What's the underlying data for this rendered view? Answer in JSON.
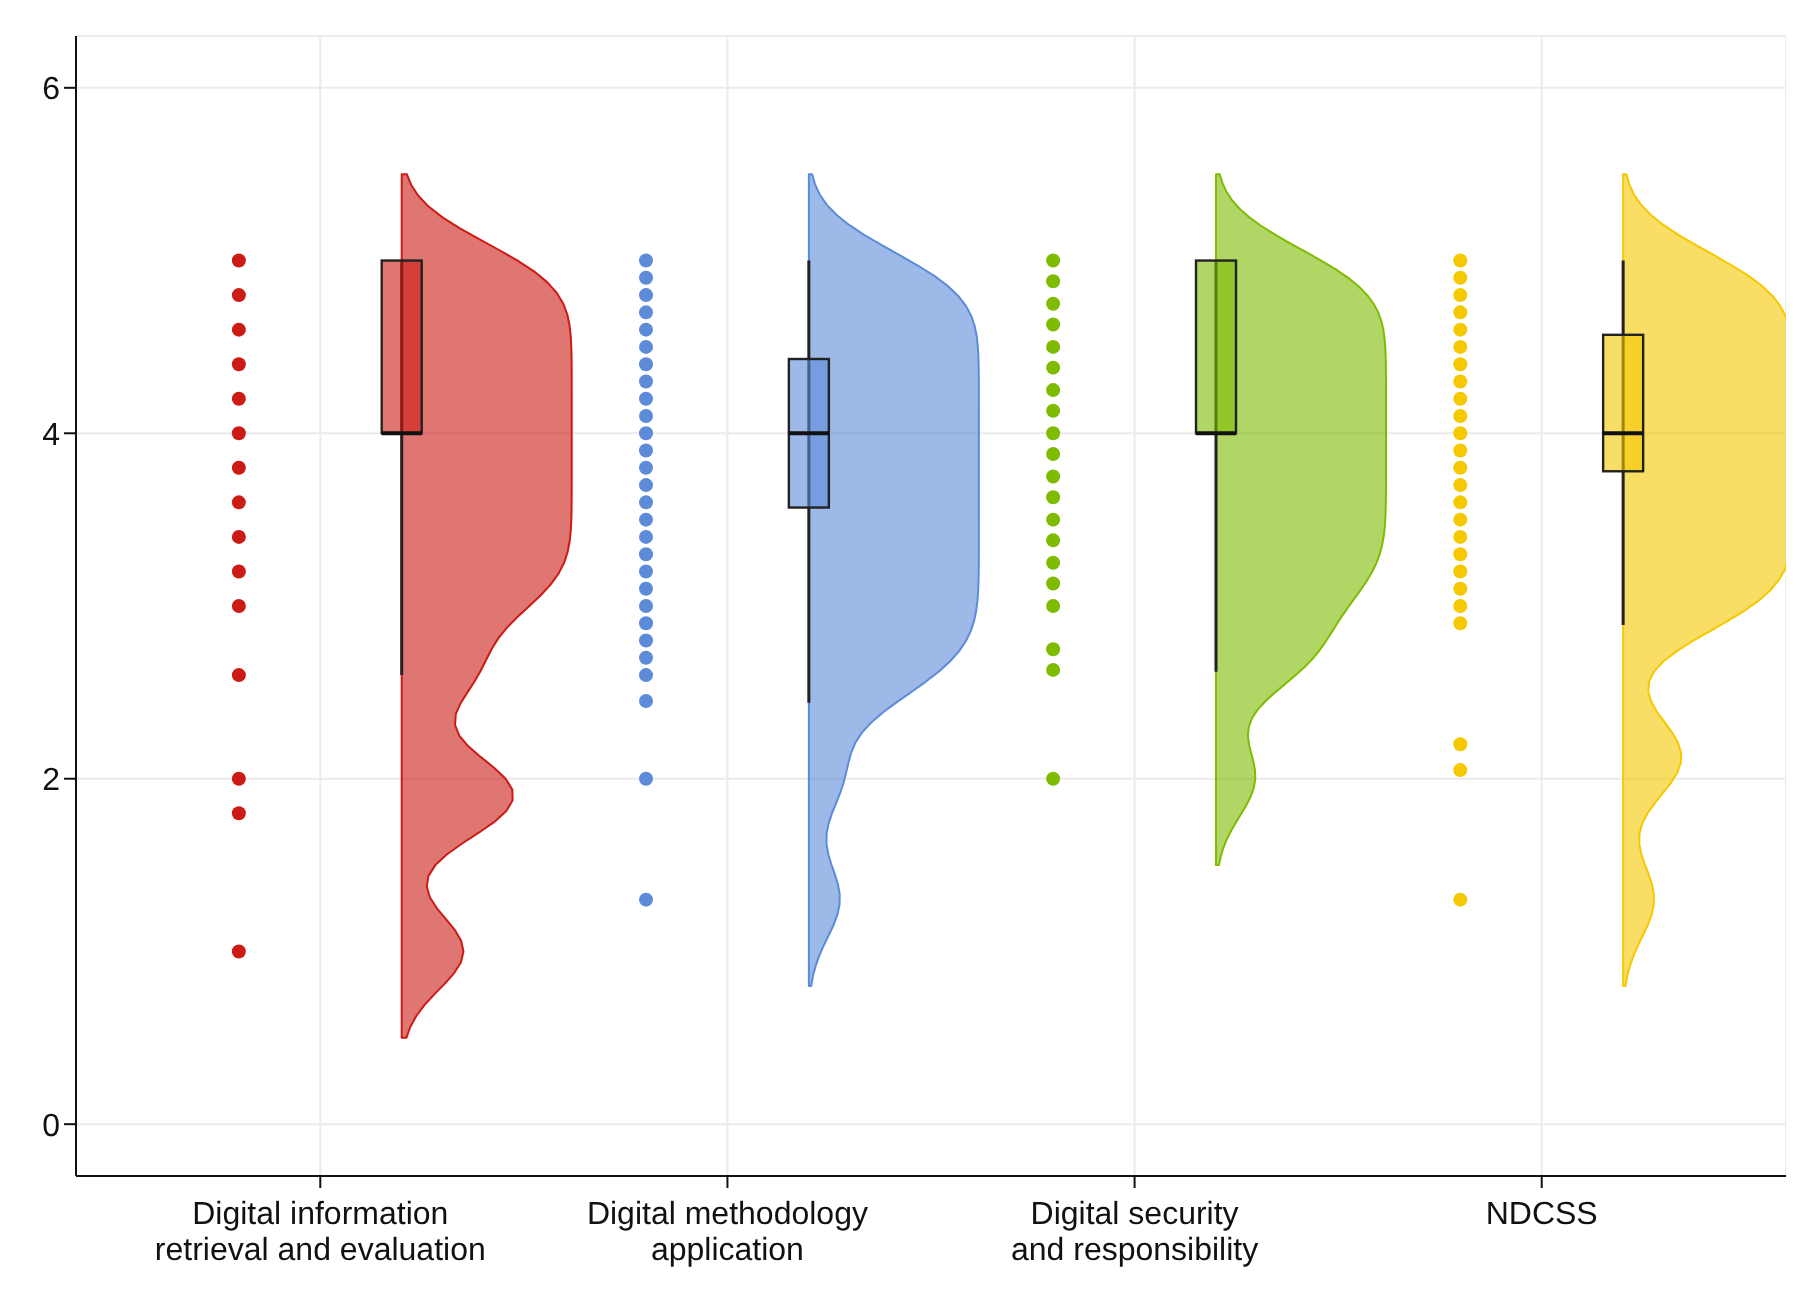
{
  "chart_data": {
    "type": "box",
    "categories": [
      "Digital information retrieval and evaluation",
      "Digital methodology application",
      "Digital security and responsibility",
      "NDCSS"
    ],
    "colors": [
      "#cc1a14",
      "#5b8bd9",
      "#7fbb00",
      "#f5c800"
    ],
    "boxes": [
      {
        "low": 2.6,
        "q1": 4,
        "median": 4,
        "q3": 5,
        "high": 5
      },
      {
        "low": 2.44,
        "q1": 3.57,
        "median": 4,
        "q3": 4.43,
        "high": 5
      },
      {
        "low": 2.62,
        "q1": 4,
        "median": 4,
        "q3": 5,
        "high": 5
      },
      {
        "low": 2.89,
        "q1": 3.78,
        "median": 4,
        "q3": 4.57,
        "high": 5
      }
    ],
    "series": [
      {
        "type": "scatter",
        "color": "#cc1a14",
        "x": [
          "Digital information retrieval and evaluation",
          "Digital information retrieval and evaluation",
          "Digital information retrieval and evaluation",
          "Digital information retrieval and evaluation",
          "Digital information retrieval and evaluation",
          "Digital information retrieval and evaluation",
          "Digital information retrieval and evaluation",
          "Digital information retrieval and evaluation",
          "Digital information retrieval and evaluation",
          "Digital information retrieval and evaluation",
          "Digital information retrieval and evaluation",
          "Digital information retrieval and evaluation",
          "Digital information retrieval and evaluation",
          "Digital information retrieval and evaluation",
          "Digital information retrieval and evaluation"
        ],
        "values": [
          5,
          4.8,
          4.6,
          4.4,
          4.2,
          4,
          3.8,
          3.6,
          3.4,
          3.2,
          3,
          2.6,
          2,
          1.8,
          1
        ]
      },
      {
        "type": "scatter",
        "color": "#5b8bd9",
        "x": [
          "Digital methodology application",
          "Digital methodology application",
          "Digital methodology application",
          "Digital methodology application",
          "Digital methodology application",
          "Digital methodology application",
          "Digital methodology application",
          "Digital methodology application",
          "Digital methodology application",
          "Digital methodology application",
          "Digital methodology application",
          "Digital methodology application",
          "Digital methodology application",
          "Digital methodology application",
          "Digital methodology application",
          "Digital methodology application",
          "Digital methodology application",
          "Digital methodology application",
          "Digital methodology application",
          "Digital methodology application",
          "Digital methodology application",
          "Digital methodology application",
          "Digital methodology application",
          "Digital methodology application",
          "Digital methodology application",
          "Digital methodology application",
          "Digital methodology application",
          "Digital methodology application"
        ],
        "values": [
          5,
          4.9,
          4.8,
          4.7,
          4.6,
          4.5,
          4.4,
          4.3,
          4.2,
          4.1,
          4,
          3.9,
          3.8,
          3.7,
          3.6,
          3.5,
          3.4,
          3.3,
          3.2,
          3.1,
          3,
          2.9,
          2.8,
          2.7,
          2.6,
          2.45,
          2,
          1.3
        ]
      },
      {
        "type": "scatter",
        "color": "#7fbb00",
        "x": [
          "Digital security and responsibility",
          "Digital security and responsibility",
          "Digital security and responsibility",
          "Digital security and responsibility",
          "Digital security and responsibility",
          "Digital security and responsibility",
          "Digital security and responsibility",
          "Digital security and responsibility",
          "Digital security and responsibility",
          "Digital security and responsibility",
          "Digital security and responsibility",
          "Digital security and responsibility",
          "Digital security and responsibility",
          "Digital security and responsibility",
          "Digital security and responsibility",
          "Digital security and responsibility",
          "Digital security and responsibility",
          "Digital security and responsibility",
          "Digital security and responsibility",
          "Digital security and responsibility"
        ],
        "values": [
          5,
          4.88,
          4.75,
          4.63,
          4.5,
          4.38,
          4.25,
          4.13,
          4,
          3.88,
          3.75,
          3.63,
          3.5,
          3.38,
          3.25,
          3.13,
          3,
          2.75,
          2.63,
          2
        ]
      },
      {
        "type": "scatter",
        "color": "#f5c800",
        "x": [
          "NDCSS",
          "NDCSS",
          "NDCSS",
          "NDCSS",
          "NDCSS",
          "NDCSS",
          "NDCSS",
          "NDCSS",
          "NDCSS",
          "NDCSS",
          "NDCSS",
          "NDCSS",
          "NDCSS",
          "NDCSS",
          "NDCSS",
          "NDCSS",
          "NDCSS",
          "NDCSS",
          "NDCSS",
          "NDCSS",
          "NDCSS",
          "NDCSS",
          "NDCSS",
          "NDCSS",
          "NDCSS"
        ],
        "values": [
          5,
          4.9,
          4.8,
          4.7,
          4.6,
          4.5,
          4.4,
          4.3,
          4.2,
          4.1,
          4,
          3.9,
          3.8,
          3.7,
          3.6,
          3.5,
          3.4,
          3.3,
          3.2,
          3.1,
          3,
          2.9,
          2.2,
          2.05,
          1.3
        ]
      }
    ],
    "ylim": [
      -0.3,
      6.3
    ],
    "yticks": [
      0,
      2,
      4,
      6
    ],
    "grid": true
  }
}
